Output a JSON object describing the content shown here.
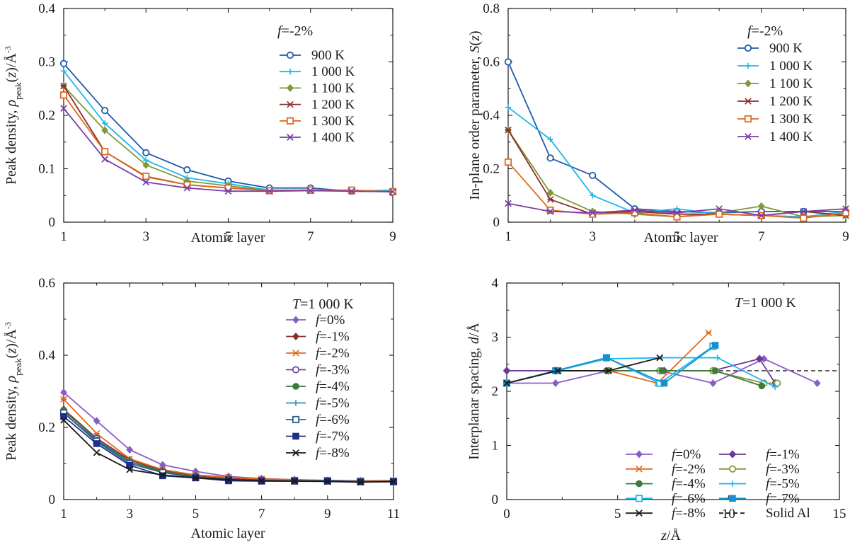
{
  "chart_data": [
    {
      "type": "line",
      "panel": "top-left",
      "xlabel": "Atomic layer",
      "ylabel_parts": [
        "Peak density, ",
        "ρ",
        "peak",
        "(",
        "z",
        ")/Å",
        "-3"
      ],
      "annotation_parts": [
        "f",
        "=-2%"
      ],
      "xlim": [
        1,
        9
      ],
      "ylim": [
        0,
        0.4
      ],
      "xticks": [
        "1",
        "3",
        "5",
        "7",
        "9"
      ],
      "yticks": [
        "0",
        "0.1",
        "0.2",
        "0.3",
        "0.4"
      ],
      "legend_position": "top-right",
      "x": [
        1,
        2,
        3,
        4,
        5,
        6,
        7,
        8,
        9
      ],
      "series": [
        {
          "name": "900 K",
          "color": "#1f5ba8",
          "marker": "circle",
          "values": [
            0.297,
            0.209,
            0.13,
            0.098,
            0.077,
            0.064,
            0.064,
            0.058,
            0.058
          ]
        },
        {
          "name": "1 000 K",
          "color": "#1fb5ea",
          "marker": "plus",
          "values": [
            0.283,
            0.185,
            0.116,
            0.083,
            0.072,
            0.06,
            0.06,
            0.058,
            0.06
          ]
        },
        {
          "name": "1 100 K",
          "color": "#7d9a3a",
          "marker": "diamond",
          "values": [
            0.255,
            0.172,
            0.107,
            0.077,
            0.068,
            0.059,
            0.06,
            0.058,
            0.057
          ]
        },
        {
          "name": "1 200 K",
          "color": "#8b2c2c",
          "marker": "star",
          "values": [
            0.255,
            0.132,
            0.085,
            0.07,
            0.064,
            0.059,
            0.059,
            0.059,
            0.057
          ]
        },
        {
          "name": "1 300 K",
          "color": "#e06a1b",
          "marker": "square",
          "values": [
            0.238,
            0.132,
            0.086,
            0.07,
            0.064,
            0.059,
            0.06,
            0.06,
            0.057
          ]
        },
        {
          "name": "1 400 K",
          "color": "#7a3fa5",
          "marker": "x",
          "values": [
            0.213,
            0.118,
            0.075,
            0.064,
            0.058,
            0.058,
            0.059,
            0.058,
            0.057
          ]
        }
      ]
    },
    {
      "type": "line",
      "panel": "top-right",
      "xlabel": "Atomic layer",
      "ylabel_parts": [
        "In-plane order parameter, ",
        "S",
        "(",
        "z",
        ")"
      ],
      "annotation_parts": [
        "f",
        "=-2%"
      ],
      "xlim": [
        1,
        9
      ],
      "ylim": [
        0,
        0.8
      ],
      "xticks": [
        "1",
        "3",
        "5",
        "7",
        "9"
      ],
      "yticks": [
        "0",
        "0.2",
        "0.4",
        "0.6",
        "0.8"
      ],
      "legend_position": "top-right",
      "x": [
        1,
        2,
        3,
        4,
        5,
        6,
        7,
        8,
        9
      ],
      "series": [
        {
          "name": "900 K",
          "color": "#1f5ba8",
          "marker": "circle",
          "values": [
            0.6,
            0.24,
            0.175,
            0.05,
            0.04,
            0.035,
            0.04,
            0.04,
            0.04
          ]
        },
        {
          "name": "1 000 K",
          "color": "#1fb5ea",
          "marker": "plus",
          "values": [
            0.43,
            0.31,
            0.1,
            0.035,
            0.05,
            0.03,
            0.025,
            0.02,
            0.04
          ]
        },
        {
          "name": "1 100 K",
          "color": "#7d9a3a",
          "marker": "diamond",
          "values": [
            0.345,
            0.11,
            0.04,
            0.03,
            0.02,
            0.035,
            0.06,
            0.02,
            0.025
          ]
        },
        {
          "name": "1 200 K",
          "color": "#8b2c2c",
          "marker": "star",
          "values": [
            0.345,
            0.085,
            0.03,
            0.04,
            0.03,
            0.03,
            0.025,
            0.04,
            0.025
          ]
        },
        {
          "name": "1 300 K",
          "color": "#e06a1b",
          "marker": "square",
          "values": [
            0.225,
            0.045,
            0.03,
            0.035,
            0.02,
            0.03,
            0.025,
            0.015,
            0.035
          ]
        },
        {
          "name": "1 400 K",
          "color": "#7a3fa5",
          "marker": "x",
          "values": [
            0.07,
            0.04,
            0.035,
            0.045,
            0.035,
            0.05,
            0.025,
            0.04,
            0.05
          ]
        }
      ]
    },
    {
      "type": "line",
      "panel": "bottom-left",
      "xlabel": "Atomic layer",
      "ylabel_parts": [
        "Peak density, ",
        "ρ",
        "peak",
        "(",
        "z",
        ")/Å",
        "-3"
      ],
      "annotation_parts": [
        "T",
        "=1 000 K"
      ],
      "xlim": [
        1,
        11
      ],
      "ylim": [
        0,
        0.6
      ],
      "xticks": [
        "1",
        "3",
        "5",
        "7",
        "9",
        "11"
      ],
      "yticks": [
        "0",
        "0.2",
        "0.4",
        "0.6"
      ],
      "legend_position": "top-right",
      "x": [
        1,
        2,
        3,
        4,
        5,
        6,
        7,
        8,
        9,
        10,
        11
      ],
      "series": [
        {
          "name": "f=0%",
          "color": "#8a5cc8",
          "marker": "diamond",
          "values": [
            0.297,
            0.218,
            0.138,
            0.096,
            0.078,
            0.064,
            0.058,
            0.055,
            0.053,
            0.052,
            0.052
          ]
        },
        {
          "name": "f=-1%",
          "color": "#8b2c2c",
          "marker": "diamond",
          "values": [
            0.25,
            0.17,
            0.11,
            0.08,
            0.065,
            0.058,
            0.054,
            0.053,
            0.052,
            0.05,
            0.05
          ]
        },
        {
          "name": "f=-2%",
          "color": "#e06a1b",
          "marker": "star",
          "values": [
            0.278,
            0.183,
            0.113,
            0.083,
            0.068,
            0.062,
            0.057,
            0.055,
            0.053,
            0.052,
            0.053
          ]
        },
        {
          "name": "f=-3%",
          "color": "#6b4ba3",
          "marker": "circle",
          "values": [
            0.245,
            0.17,
            0.105,
            0.078,
            0.063,
            0.056,
            0.052,
            0.052,
            0.052,
            0.05,
            0.05
          ]
        },
        {
          "name": "f=-4%",
          "color": "#3f7a3a",
          "marker": "circle-filled",
          "values": [
            0.248,
            0.165,
            0.105,
            0.078,
            0.063,
            0.055,
            0.052,
            0.052,
            0.053,
            0.05,
            0.05
          ]
        },
        {
          "name": "f=-5%",
          "color": "#2b8fb0",
          "marker": "plus",
          "values": [
            0.24,
            0.16,
            0.1,
            0.075,
            0.062,
            0.055,
            0.052,
            0.052,
            0.052,
            0.05,
            0.05
          ]
        },
        {
          "name": "f=-6%",
          "color": "#2c5d8a",
          "marker": "square",
          "values": [
            0.24,
            0.162,
            0.1,
            0.075,
            0.062,
            0.055,
            0.052,
            0.052,
            0.052,
            0.05,
            0.05
          ]
        },
        {
          "name": "f=-7%",
          "color": "#1f2f8a",
          "marker": "square-filled",
          "values": [
            0.23,
            0.155,
            0.095,
            0.066,
            0.06,
            0.052,
            0.051,
            0.051,
            0.051,
            0.049,
            0.049
          ]
        },
        {
          "name": "f=-8%",
          "color": "#1a1a1a",
          "marker": "x",
          "values": [
            0.22,
            0.13,
            0.083,
            0.068,
            0.06,
            0.055,
            0.052,
            0.051,
            0.05,
            0.048,
            0.05
          ]
        }
      ]
    },
    {
      "type": "line",
      "panel": "bottom-right",
      "xlabel_parts": [
        "z",
        "/Å"
      ],
      "ylabel_parts": [
        "Interplanar spacing, ",
        "d",
        "/Å"
      ],
      "annotation_parts": [
        "T",
        "=1 000 K"
      ],
      "xlim": [
        0,
        15
      ],
      "ylim": [
        0,
        4
      ],
      "xticks": [
        "0",
        "5",
        "10",
        "15"
      ],
      "yticks": [
        "0",
        "1",
        "2",
        "3",
        "4"
      ],
      "legend_position": "bottom",
      "reference_line": {
        "name": "Solid Al",
        "y": 2.38,
        "color": "#1a1a1a"
      },
      "series": [
        {
          "name": "f=0%",
          "color": "#8a5cc8",
          "marker": "diamond",
          "x": [
            0,
            2.2,
            4.6,
            6.9,
            9.3,
            11.6,
            14
          ],
          "values": [
            2.15,
            2.15,
            2.38,
            2.38,
            2.15,
            2.6,
            2.15
          ]
        },
        {
          "name": "f=-1%",
          "color": "#6b3a96",
          "marker": "diamond-filled",
          "x": [
            0,
            2.2,
            4.6,
            7.1,
            9.3,
            11.4,
            12.1
          ],
          "values": [
            2.38,
            2.38,
            2.38,
            2.38,
            2.38,
            2.6,
            2.15
          ]
        },
        {
          "name": "f=-2%",
          "color": "#e06a1b",
          "marker": "star",
          "x": [
            0,
            2.3,
            4.6,
            6.8,
            9.1
          ],
          "values": [
            2.15,
            2.38,
            2.38,
            2.15,
            3.08
          ]
        },
        {
          "name": "f=-3%",
          "color": "#7d9a3a",
          "marker": "circle",
          "x": [
            0,
            2.3,
            4.6,
            6.9,
            9.3,
            11.6,
            12.2
          ],
          "values": [
            2.15,
            2.38,
            2.38,
            2.38,
            2.38,
            2.15,
            2.15
          ]
        },
        {
          "name": "f=-4%",
          "color": "#3f7a3a",
          "marker": "circle-filled",
          "x": [
            0,
            2.3,
            4.5,
            7,
            9.4,
            11.5
          ],
          "values": [
            2.15,
            2.38,
            2.38,
            2.38,
            2.38,
            2.1
          ]
        },
        {
          "name": "f=-5%",
          "color": "#1fb5ea",
          "marker": "plus",
          "x": [
            0,
            2.3,
            4.5,
            7,
            9.5,
            12.1
          ],
          "values": [
            2.15,
            2.38,
            2.6,
            2.62,
            2.62,
            2.08
          ]
        },
        {
          "name": "f=-6%",
          "color": "#1fb5ea",
          "marker": "square",
          "x": [
            0,
            2.3,
            4.5,
            6.9,
            9.3
          ],
          "values": [
            2.15,
            2.38,
            2.62,
            2.15,
            2.83
          ]
        },
        {
          "name": "f=-7%",
          "color": "#1a8fd0",
          "marker": "square-filled",
          "x": [
            0,
            2.2,
            4.5,
            7.1,
            9.4
          ],
          "values": [
            2.15,
            2.38,
            2.62,
            2.15,
            2.85
          ]
        },
        {
          "name": "f=-8%",
          "color": "#1a1a1a",
          "marker": "x",
          "x": [
            0,
            2.3,
            4.6,
            6.9
          ],
          "values": [
            2.15,
            2.38,
            2.38,
            2.62
          ]
        }
      ]
    }
  ]
}
